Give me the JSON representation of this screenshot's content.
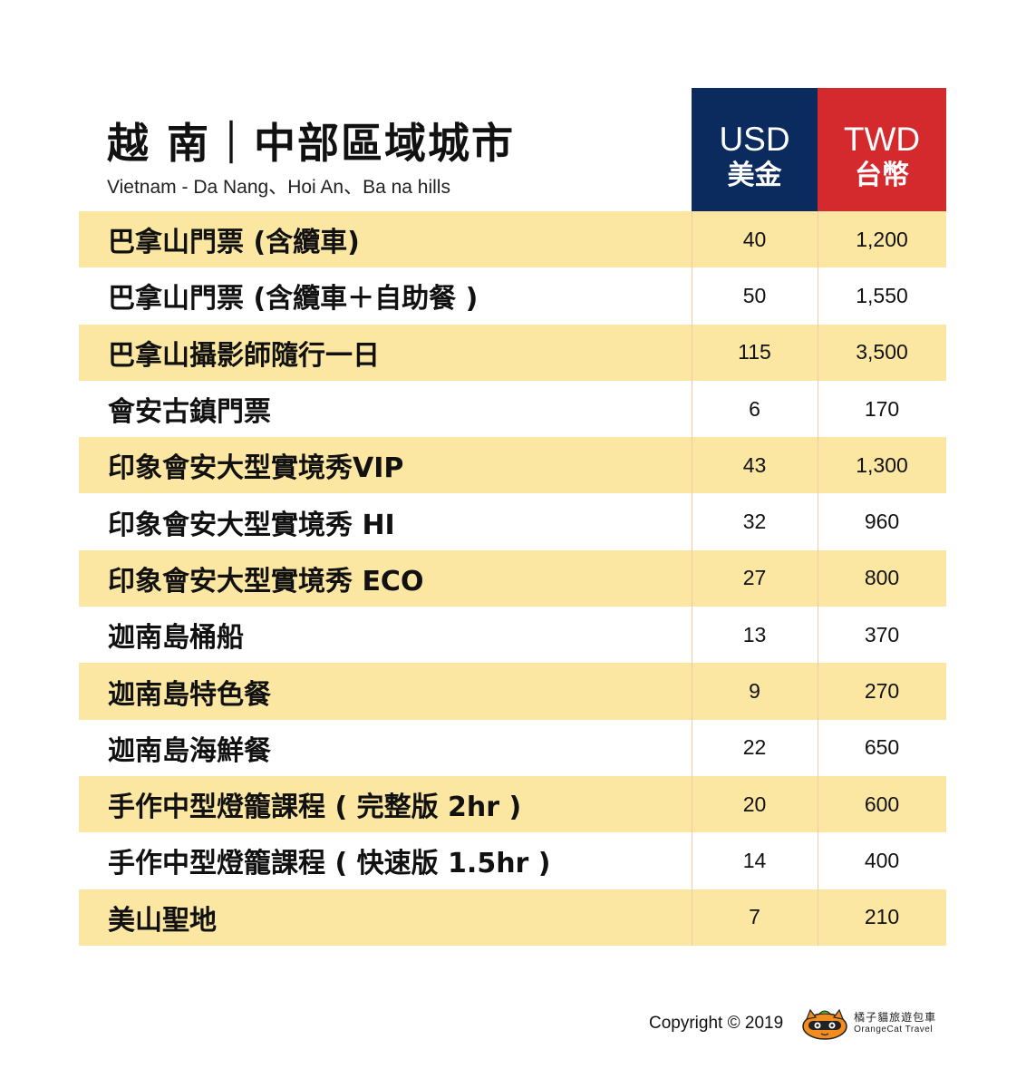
{
  "header": {
    "title": "越 南｜中部區域城市",
    "subtitle": "Vietnam - Da Nang、Hoi An、Ba na hills",
    "usd_code": "USD",
    "usd_name": "美金",
    "twd_code": "TWD",
    "twd_name": "台幣",
    "usd_color": "#0b2a5e",
    "twd_color": "#d42a2d",
    "row_shade_color": "#fbe7a1"
  },
  "rows": [
    {
      "name": "巴拿山門票 (含纜車)",
      "usd": "40",
      "twd": "1,200"
    },
    {
      "name": "巴拿山門票 (含纜車＋自助餐 )",
      "usd": "50",
      "twd": "1,550"
    },
    {
      "name": "巴拿山攝影師隨行一日",
      "usd": "115",
      "twd": "3,500"
    },
    {
      "name": "會安古鎮門票",
      "usd": "6",
      "twd": "170"
    },
    {
      "name": "印象會安大型實境秀VIP",
      "usd": "43",
      "twd": "1,300"
    },
    {
      "name": "印象會安大型實境秀 HI",
      "usd": "32",
      "twd": "960"
    },
    {
      "name": "印象會安大型實境秀 ECO",
      "usd": "27",
      "twd": "800"
    },
    {
      "name": "迦南島桶船",
      "usd": "13",
      "twd": "370"
    },
    {
      "name": "迦南島特色餐",
      "usd": "9",
      "twd": "270"
    },
    {
      "name": "迦南島海鮮餐",
      "usd": "22",
      "twd": "650"
    },
    {
      "name": "手作中型燈籠課程 ( 完整版 2hr )",
      "usd": "20",
      "twd": "600"
    },
    {
      "name": "手作中型燈籠課程 ( 快速版 1.5hr )",
      "usd": "14",
      "twd": "400"
    },
    {
      "name": "美山聖地",
      "usd": "7",
      "twd": "210"
    }
  ],
  "footer": {
    "copyright": "Copyright © 2019",
    "logo_icon": "orange-cat-icon",
    "logo_name_zh": "橘子貓旅遊包車",
    "logo_name_en": "OrangeCat Travel"
  }
}
